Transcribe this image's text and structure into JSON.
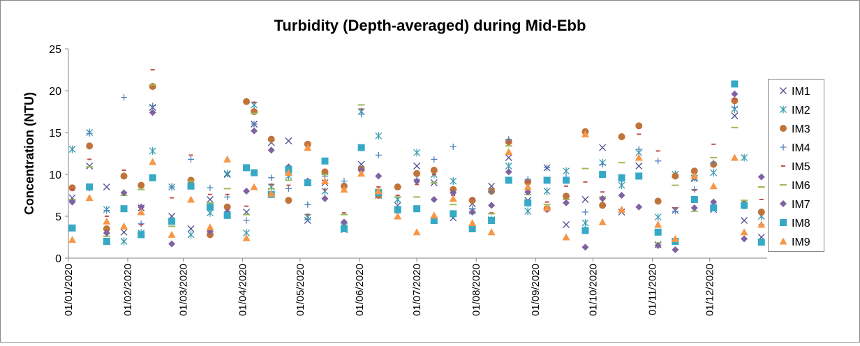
{
  "chart_data": {
    "type": "scatter",
    "title": "Turbidity (Depth-averaged) during Mid-Ebb",
    "y_label": "Concentration (NTU)",
    "x": [
      "2020-01-03",
      "2020-01-12",
      "2020-01-21",
      "2020-01-30",
      "2020-02-08",
      "2020-02-14",
      "2020-02-24",
      "2020-03-05",
      "2020-03-15",
      "2020-03-24",
      "2020-04-03",
      "2020-04-07",
      "2020-04-16",
      "2020-04-25",
      "2020-05-05",
      "2020-05-14",
      "2020-05-24",
      "2020-06-02",
      "2020-06-11",
      "2020-06-21",
      "2020-07-01",
      "2020-07-10",
      "2020-07-20",
      "2020-07-30",
      "2020-08-09",
      "2020-08-18",
      "2020-08-28",
      "2020-09-07",
      "2020-09-17",
      "2020-09-27",
      "2020-10-06",
      "2020-10-16",
      "2020-10-25",
      "2020-11-04",
      "2020-11-13",
      "2020-11-23",
      "2020-12-03",
      "2020-12-14",
      "2020-12-19",
      "2020-12-28"
    ],
    "xlim": [
      "2020-01-01",
      "2020-12-31"
    ],
    "xticks": [
      {
        "value": "2020-01-01",
        "label": "01/01/2020"
      },
      {
        "value": "2020-02-01",
        "label": "01/02/2020"
      },
      {
        "value": "2020-03-01",
        "label": "01/03/2020"
      },
      {
        "value": "2020-04-01",
        "label": "01/04/2020"
      },
      {
        "value": "2020-05-01",
        "label": "01/05/2020"
      },
      {
        "value": "2020-06-01",
        "label": "01/06/2020"
      },
      {
        "value": "2020-07-01",
        "label": "01/07/2020"
      },
      {
        "value": "2020-08-01",
        "label": "01/08/2020"
      },
      {
        "value": "2020-09-01",
        "label": "01/09/2020"
      },
      {
        "value": "2020-10-01",
        "label": "01/10/2020"
      },
      {
        "value": "2020-11-01",
        "label": "01/11/2020"
      },
      {
        "value": "2020-12-01",
        "label": "01/12/2020"
      }
    ],
    "ylim": [
      0,
      25
    ],
    "yticks": [
      0,
      5,
      10,
      15,
      20,
      25
    ],
    "grid": false,
    "legend": "right",
    "series": [
      {
        "name": "IM1",
        "color": "#4d4f8f",
        "marker": "x",
        "values": [
          7.2,
          11.0,
          8.5,
          3.1,
          6.0,
          18.0,
          5.0,
          3.5,
          7.0,
          10.0,
          5.5,
          16.0,
          13.8,
          14.0,
          4.5,
          9.0,
          3.4,
          11.2,
          7.5,
          6.3,
          11.0,
          9.0,
          4.8,
          6.5,
          8.6,
          12.0,
          6.9,
          10.8,
          4.0,
          7.0,
          13.2,
          5.5,
          11.0,
          1.6,
          5.7,
          9.5,
          5.8,
          17.0,
          4.5,
          2.5
        ]
      },
      {
        "name": "IM2",
        "color": "#3a9bb0",
        "marker": "asterisk",
        "values": [
          13.0,
          15.0,
          5.8,
          2.0,
          3.0,
          12.8,
          8.5,
          2.8,
          5.4,
          10.1,
          3.0,
          18.3,
          8.5,
          9.8,
          4.9,
          8.0,
          3.8,
          17.5,
          14.6,
          7.0,
          12.6,
          10.0,
          9.2,
          5.6,
          4.6,
          11.0,
          5.6,
          8.0,
          10.4,
          4.2,
          11.4,
          8.7,
          12.6,
          4.9,
          10.0,
          9.6,
          10.2,
          17.8,
          12.0,
          5.0
        ]
      },
      {
        "name": "IM3",
        "color": "#c0743a",
        "marker": "circle",
        "values": [
          8.4,
          13.4,
          3.5,
          9.8,
          8.7,
          20.5,
          4.4,
          9.3,
          2.8,
          6.1,
          18.7,
          17.5,
          14.2,
          6.9,
          13.6,
          10.3,
          8.6,
          10.6,
          7.5,
          8.5,
          10.1,
          10.5,
          8.2,
          6.9,
          8.0,
          13.9,
          9.1,
          5.9,
          7.4,
          15.1,
          6.3,
          14.5,
          15.8,
          6.8,
          9.8,
          10.4,
          11.2,
          18.8,
          6.3,
          5.5
        ]
      },
      {
        "name": "IM4",
        "color": "#4f81bd",
        "marker": "plus",
        "values": [
          6.9,
          14.9,
          5.7,
          19.2,
          4.1,
          18.2,
          8.5,
          11.8,
          8.4,
          7.3,
          4.5,
          16.0,
          9.6,
          8.3,
          6.4,
          9.8,
          9.2,
          17.2,
          12.3,
          5.4,
          9.4,
          11.8,
          13.3,
          5.9,
          7.9,
          14.2,
          9.4,
          10.8,
          9.6,
          5.5,
          11.2,
          9.2,
          13.0,
          11.6,
          5.6,
          8.2,
          11.4,
          18.0,
          6.2,
          4.0
        ]
      },
      {
        "name": "IM5",
        "color": "#c0504d",
        "marker": "dash",
        "values": [
          8.2,
          11.8,
          5.0,
          10.5,
          4.0,
          22.5,
          7.2,
          12.3,
          7.6,
          7.6,
          6.2,
          18.6,
          8.8,
          8.7,
          5.2,
          8.2,
          5.4,
          17.8,
          8.5,
          7.5,
          8.8,
          10.0,
          7.5,
          7.1,
          5.4,
          13.8,
          9.1,
          6.7,
          8.6,
          9.1,
          7.9,
          9.8,
          14.8,
          12.8,
          6.0,
          8.1,
          13.6,
          19.0,
          6.8,
          7.0
        ]
      },
      {
        "name": "IM6",
        "color": "#9bbb59",
        "marker": "longdash",
        "values": [
          7.0,
          10.9,
          2.6,
          7.5,
          8.2,
          20.7,
          3.8,
          9.2,
          6.6,
          8.3,
          5.2,
          17.3,
          8.3,
          9.3,
          8.9,
          10.0,
          5.2,
          18.3,
          8.2,
          7.3,
          7.3,
          9.0,
          6.4,
          5.5,
          5.3,
          13.4,
          7.6,
          6.4,
          7.0,
          10.7,
          7.3,
          11.4,
          9.5,
          1.8,
          8.7,
          5.6,
          12.0,
          15.6,
          6.9,
          8.5
        ]
      },
      {
        "name": "IM7",
        "color": "#7e62a1",
        "marker": "diamond",
        "values": [
          6.7,
          8.4,
          3.0,
          7.8,
          6.1,
          17.4,
          1.7,
          8.6,
          3.2,
          5.5,
          8.0,
          15.2,
          12.9,
          10.9,
          9.2,
          7.1,
          4.3,
          10.5,
          9.8,
          5.9,
          9.2,
          7.0,
          7.8,
          5.5,
          6.3,
          10.3,
          7.9,
          5.8,
          6.6,
          1.3,
          7.1,
          7.5,
          6.1,
          1.5,
          1.0,
          6.0,
          6.7,
          19.6,
          2.3,
          9.7
        ]
      },
      {
        "name": "IM8",
        "color": "#35a9c6",
        "marker": "square",
        "values": [
          3.6,
          8.5,
          2.0,
          5.9,
          2.8,
          9.6,
          4.4,
          8.6,
          6.1,
          5.1,
          10.8,
          10.2,
          7.6,
          10.6,
          9.0,
          11.6,
          3.5,
          13.2,
          7.8,
          5.8,
          5.9,
          4.5,
          5.3,
          3.5,
          4.5,
          9.3,
          6.6,
          9.3,
          9.3,
          3.3,
          10.0,
          9.6,
          9.8,
          3.1,
          2.0,
          7.0,
          6.0,
          20.8,
          6.3,
          1.9
        ]
      },
      {
        "name": "IM9",
        "color": "#f79646",
        "marker": "triangle",
        "values": [
          2.2,
          7.2,
          4.4,
          3.8,
          5.5,
          11.5,
          2.8,
          7.0,
          3.7,
          11.8,
          2.4,
          8.5,
          7.7,
          10.2,
          13.2,
          9.2,
          8.2,
          10.1,
          8.0,
          5.0,
          3.1,
          5.1,
          7.1,
          4.2,
          3.1,
          12.7,
          8.5,
          6.0,
          2.5,
          14.8,
          4.3,
          5.8,
          12.0,
          4.0,
          2.3,
          9.8,
          8.6,
          12.0,
          3.1,
          4.0
        ]
      }
    ]
  }
}
